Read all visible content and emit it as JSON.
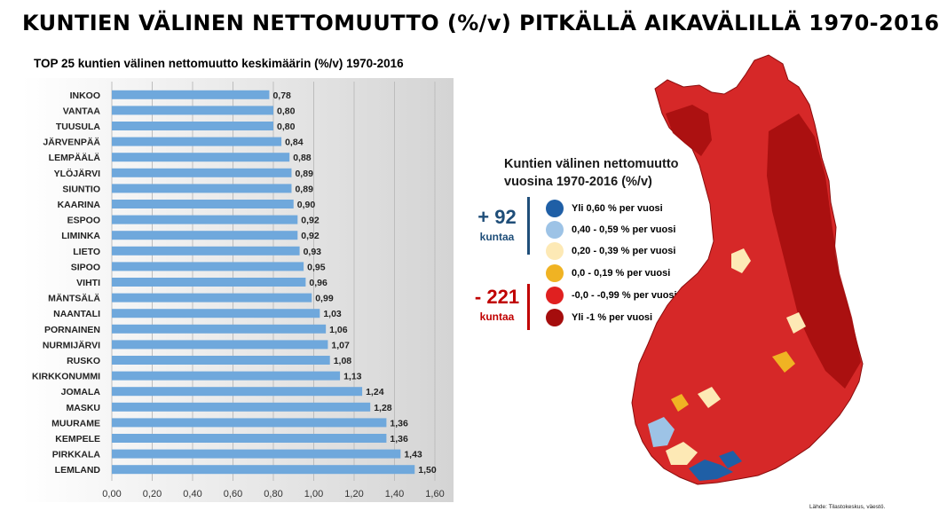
{
  "title": "KUNTIEN VÄLINEN NETTOMUUTTO (%/v)  PITKÄLLÄ AIKAVÄLILLÄ 1970-2016",
  "chart_data": {
    "type": "bar",
    "orientation": "horizontal",
    "title": "TOP 25 kuntien välinen nettomuutto keskimäärin (%/v) 1970-2016",
    "categories": [
      "INKOO",
      "VANTAA",
      "TUUSULA",
      "JÄRVENPÄÄ",
      "LEMPÄÄLÄ",
      "YLÖJÄRVI",
      "SIUNTIO",
      "KAARINA",
      "ESPOO",
      "LIMINKA",
      "LIETO",
      "SIPOO",
      "VIHTI",
      "MÄNTSÄLÄ",
      "NAANTALI",
      "PORNAINEN",
      "NURMIJÄRVI",
      "RUSKO",
      "KIRKKONUMMI",
      "JOMALA",
      "MASKU",
      "MUURAME",
      "KEMPELE",
      "PIRKKALA",
      "LEMLAND"
    ],
    "values": [
      0.78,
      0.8,
      0.8,
      0.84,
      0.88,
      0.89,
      0.89,
      0.9,
      0.92,
      0.92,
      0.93,
      0.95,
      0.96,
      0.99,
      1.03,
      1.06,
      1.07,
      1.08,
      1.13,
      1.24,
      1.28,
      1.36,
      1.36,
      1.43,
      1.5
    ],
    "value_labels": [
      "0,78",
      "0,80",
      "0,80",
      "0,84",
      "0,88",
      "0,89",
      "0,89",
      "0,90",
      "0,92",
      "0,92",
      "0,93",
      "0,95",
      "0,96",
      "0,99",
      "1,03",
      "1,06",
      "1,07",
      "1,08",
      "1,13",
      "1,24",
      "1,28",
      "1,36",
      "1,36",
      "1,43",
      "1,50"
    ],
    "xlim": [
      0,
      1.6
    ],
    "x_ticks": [
      0,
      0.2,
      0.4,
      0.6,
      0.8,
      1.0,
      1.2,
      1.4,
      1.6
    ],
    "x_tick_labels": [
      "0,00",
      "0,20",
      "0,40",
      "0,60",
      "0,80",
      "1,00",
      "1,20",
      "1,40",
      "1,60"
    ],
    "grid": true,
    "bar_color": "#6fa8dc",
    "background_gradient": [
      "#ffffff",
      "#d4d4d4"
    ]
  },
  "legend": {
    "title_line1": "Kuntien välinen nettomuutto",
    "title_line2": "vuosina 1970-2016 (%/v)",
    "items": [
      {
        "label": "Yli 0,60 % per vuosi",
        "color": "#1f5fa6"
      },
      {
        "label": "0,40 - 0,59 % per vuosi",
        "color": "#9dc3e6"
      },
      {
        "label": "0,20 - 0,39 % per vuosi",
        "color": "#fde9b5"
      },
      {
        "label": "0,0 - 0,19 % per vuosi",
        "color": "#f0b323"
      },
      {
        "label": "-0,0 -  -0,99 % per vuosi",
        "color": "#e02020"
      },
      {
        "label": "Yli -1 % per vuosi",
        "color": "#a50d0d"
      }
    ]
  },
  "counts": {
    "plus_value": "+ 92",
    "plus_unit": "kuntaa",
    "minus_value": "- 221",
    "minus_unit": "kuntaa",
    "plus_color": "#1f4e79",
    "minus_color": "#c00000"
  },
  "source": "Lähde: Tilastokeskus, väestö."
}
